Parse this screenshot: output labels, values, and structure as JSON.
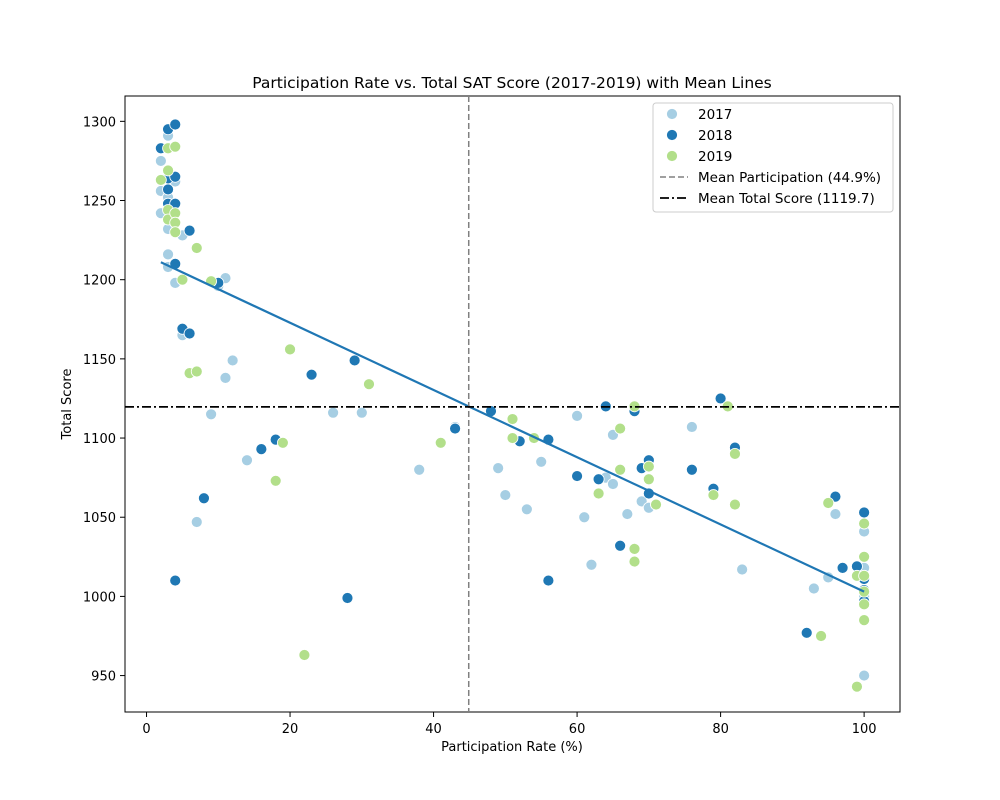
{
  "chart_data": {
    "type": "scatter",
    "title": "Participation Rate vs. Total SAT Score (2017-2019) with Mean Lines",
    "xlabel": "Participation Rate (%)",
    "ylabel": "Total Score",
    "xlim": [
      -3,
      105
    ],
    "ylim": [
      927,
      1316
    ],
    "xticks": [
      0,
      20,
      40,
      60,
      80,
      100
    ],
    "yticks": [
      950,
      1000,
      1050,
      1100,
      1150,
      1200,
      1250,
      1300
    ],
    "grid": false,
    "legend_position": "top-right",
    "colors": {
      "2017": "#a6cee3",
      "2018": "#1f78b4",
      "2019": "#b2df8a",
      "trend": "#1f77b4",
      "mean_x": "#808080",
      "mean_y": "#000000"
    },
    "series": [
      {
        "name": "2017",
        "points": [
          [
            2,
            1275
          ],
          [
            2,
            1256
          ],
          [
            2,
            1242
          ],
          [
            3,
            1291
          ],
          [
            3,
            1265
          ],
          [
            3,
            1252
          ],
          [
            3,
            1232
          ],
          [
            3,
            1216
          ],
          [
            3,
            1208
          ],
          [
            4,
            1284
          ],
          [
            4,
            1262
          ],
          [
            4,
            1236
          ],
          [
            4,
            1198
          ],
          [
            5,
            1228
          ],
          [
            5,
            1165
          ],
          [
            6,
            1166
          ],
          [
            7,
            1047
          ],
          [
            9,
            1115
          ],
          [
            10,
            1196
          ],
          [
            11,
            1138
          ],
          [
            11,
            1201
          ],
          [
            12,
            1149
          ],
          [
            14,
            1086
          ],
          [
            26,
            1116
          ],
          [
            30,
            1116
          ],
          [
            38,
            1080
          ],
          [
            43,
            1107
          ],
          [
            49,
            1081
          ],
          [
            50,
            1064
          ],
          [
            53,
            1055
          ],
          [
            55,
            1085
          ],
          [
            60,
            1114
          ],
          [
            61,
            1050
          ],
          [
            62,
            1020
          ],
          [
            64,
            1075
          ],
          [
            65,
            1102
          ],
          [
            65,
            1071
          ],
          [
            67,
            1052
          ],
          [
            69,
            1060
          ],
          [
            70,
            1056
          ],
          [
            71,
            1058
          ],
          [
            76,
            1107
          ],
          [
            83,
            1017
          ],
          [
            93,
            1005
          ],
          [
            95,
            1012
          ],
          [
            96,
            1052
          ],
          [
            100,
            1041
          ],
          [
            100,
            1025
          ],
          [
            100,
            1018
          ],
          [
            100,
            1000
          ],
          [
            100,
            995
          ],
          [
            100,
            950
          ]
        ]
      },
      {
        "name": "2018",
        "points": [
          [
            2,
            1283
          ],
          [
            3,
            1295
          ],
          [
            3,
            1264
          ],
          [
            3,
            1257
          ],
          [
            3,
            1248
          ],
          [
            4,
            1298
          ],
          [
            4,
            1265
          ],
          [
            4,
            1248
          ],
          [
            4,
            1010
          ],
          [
            4,
            1210
          ],
          [
            5,
            1169
          ],
          [
            6,
            1231
          ],
          [
            6,
            1166
          ],
          [
            8,
            1062
          ],
          [
            10,
            1198
          ],
          [
            16,
            1093
          ],
          [
            18,
            1099
          ],
          [
            23,
            1140
          ],
          [
            28,
            999
          ],
          [
            29,
            1149
          ],
          [
            43,
            1106
          ],
          [
            48,
            1117
          ],
          [
            52,
            1098
          ],
          [
            56,
            1099
          ],
          [
            56,
            1010
          ],
          [
            60,
            1076
          ],
          [
            63,
            1074
          ],
          [
            64,
            1120
          ],
          [
            66,
            1032
          ],
          [
            68,
            1117
          ],
          [
            69,
            1081
          ],
          [
            70,
            1086
          ],
          [
            70,
            1065
          ],
          [
            76,
            1080
          ],
          [
            79,
            1068
          ],
          [
            80,
            1125
          ],
          [
            82,
            1094
          ],
          [
            92,
            977
          ],
          [
            96,
            1063
          ],
          [
            97,
            1018
          ],
          [
            99,
            1019
          ],
          [
            100,
            1053
          ],
          [
            100,
            1011
          ],
          [
            100,
            1004
          ],
          [
            100,
            997
          ]
        ]
      },
      {
        "name": "2019",
        "points": [
          [
            2,
            1263
          ],
          [
            3,
            1283
          ],
          [
            3,
            1269
          ],
          [
            3,
            1244
          ],
          [
            3,
            1238
          ],
          [
            4,
            1284
          ],
          [
            4,
            1242
          ],
          [
            4,
            1236
          ],
          [
            4,
            1230
          ],
          [
            5,
            1200
          ],
          [
            6,
            1141
          ],
          [
            7,
            1142
          ],
          [
            7,
            1220
          ],
          [
            9,
            1199
          ],
          [
            18,
            1073
          ],
          [
            19,
            1097
          ],
          [
            20,
            1156
          ],
          [
            22,
            963
          ],
          [
            31,
            1134
          ],
          [
            41,
            1097
          ],
          [
            51,
            1112
          ],
          [
            51,
            1100
          ],
          [
            54,
            1100
          ],
          [
            63,
            1065
          ],
          [
            66,
            1106
          ],
          [
            66,
            1080
          ],
          [
            68,
            1120
          ],
          [
            68,
            1030
          ],
          [
            68,
            1022
          ],
          [
            70,
            1082
          ],
          [
            70,
            1074
          ],
          [
            71,
            1058
          ],
          [
            79,
            1064
          ],
          [
            81,
            1120
          ],
          [
            82,
            1090
          ],
          [
            82,
            1058
          ],
          [
            94,
            975
          ],
          [
            95,
            1059
          ],
          [
            99,
            1013
          ],
          [
            99,
            943
          ],
          [
            100,
            1046
          ],
          [
            100,
            1025
          ],
          [
            100,
            1013
          ],
          [
            100,
            1003
          ],
          [
            100,
            995
          ],
          [
            100,
            985
          ]
        ]
      }
    ],
    "regression_line": {
      "x": [
        2,
        100
      ],
      "y": [
        1211,
        1003
      ]
    },
    "mean_lines": [
      {
        "label": "Mean Participation (44.9%)",
        "orientation": "vertical",
        "value": 44.9,
        "style": "dashed"
      },
      {
        "label": "Mean Total Score (1119.7)",
        "orientation": "horizontal",
        "value": 1119.7,
        "style": "dashdot"
      }
    ]
  }
}
